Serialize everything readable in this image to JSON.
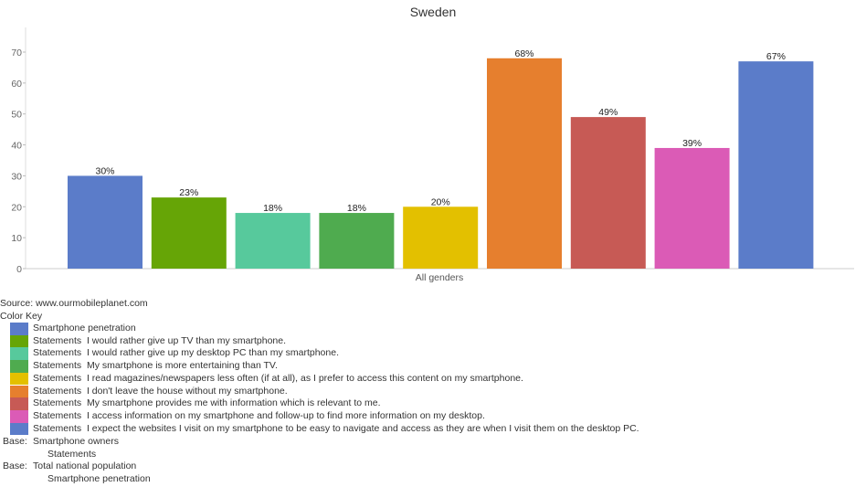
{
  "chart_data": {
    "type": "bar",
    "title": "Sweden",
    "xlabel": "",
    "ylabel": "",
    "category": "All genders",
    "ylim": [
      0,
      78
    ],
    "yticks": [
      0,
      10,
      20,
      30,
      40,
      50,
      60,
      70
    ],
    "grid": false,
    "series": [
      {
        "name": "Smartphone penetration",
        "value": 30,
        "label": "30%",
        "color": "#5b7cc9"
      },
      {
        "name": "Statements  I would rather give up TV than my smartphone.",
        "value": 23,
        "label": "23%",
        "color": "#66a506"
      },
      {
        "name": "Statements  I would rather give up my desktop PC than my smartphone.",
        "value": 18,
        "label": "18%",
        "color": "#57c99c"
      },
      {
        "name": "Statements  My smartphone is more entertaining than TV.",
        "value": 18,
        "label": "18%",
        "color": "#4fab4f"
      },
      {
        "name": "Statements  I read magazines/newspapers less often (if at all), as I prefer to access this content on my smartphone.",
        "value": 20,
        "label": "20%",
        "color": "#e3c000"
      },
      {
        "name": "Statements  I don't leave the house without my smartphone.",
        "value": 68,
        "label": "68%",
        "color": "#e67f2e"
      },
      {
        "name": "Statements  My smartphone provides me with information which is relevant to me.",
        "value": 49,
        "label": "49%",
        "color": "#c75a55"
      },
      {
        "name": "Statements  I access information on my smartphone and follow-up to find more information on my desktop.",
        "value": 39,
        "label": "39%",
        "color": "#db5bb6"
      },
      {
        "name": "Statements  I expect the websites I visit on my smartphone to be easy to navigate and access as they are when I visit them on the desktop PC.",
        "value": 67,
        "label": "67%",
        "color": "#5b7cc9"
      }
    ]
  },
  "source": "Source: www.ourmobileplanet.com",
  "color_key_label": "Color Key",
  "bases": [
    {
      "label": "Base:",
      "value": "Smartphone owners",
      "sub": "Statements"
    },
    {
      "label": "Base:",
      "value": "Total national population",
      "sub": "Smartphone penetration"
    }
  ]
}
